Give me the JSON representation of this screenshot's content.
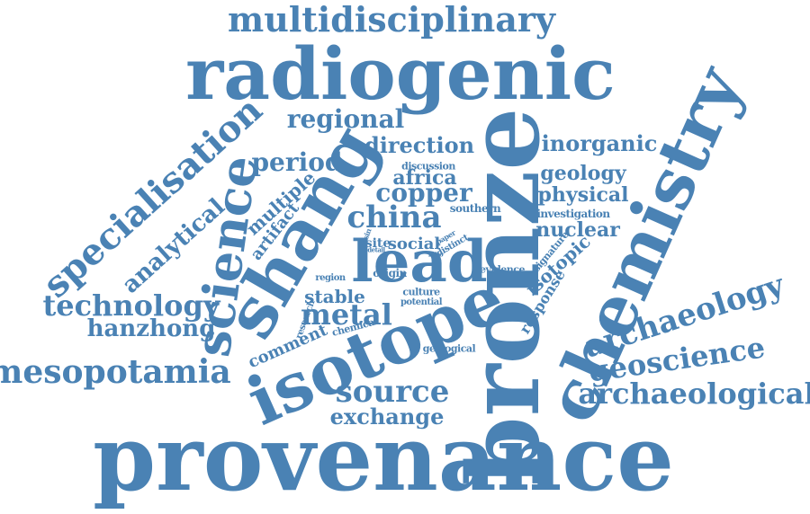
{
  "cloud": {
    "color": "#4a82b4",
    "words": {
      "multidisciplinary": "multidisciplinary",
      "radiogenic": "radiogenic",
      "provenance": "provenance",
      "isotope": "isotope",
      "bronze": "bronze",
      "chemistry": "chemistry",
      "shang": "shang",
      "lead": "lead",
      "science": "science",
      "specialisation": "specialisation",
      "mesopotamia": "mesopotamia",
      "technology": "technology",
      "hanzhong": "hanzhong",
      "analytical": "analytical",
      "multiple": "multiple",
      "artifact": "artifact",
      "regional": "regional",
      "period": "period",
      "direction": "direction",
      "inorganic": "inorganic",
      "geology": "geology",
      "physical": "physical",
      "investigation": "investigation",
      "nuclear": "nuclear",
      "signature": "signature",
      "isotopic": "isotopic",
      "response": "response",
      "archaeology": "archaeology",
      "geoscience": "geoscience",
      "archaeological": "archaeological",
      "source": "source",
      "exchange": "exchange",
      "metal": "metal",
      "stable": "stable",
      "comment": "comment",
      "research": "research",
      "chemical": "chemical",
      "geological": "geological",
      "china": "china",
      "copper": "copper",
      "africa": "africa",
      "discussion": "discussion",
      "southern": "southern",
      "social": "social",
      "site": "site",
      "basin": "basin",
      "detail": "detail",
      "paper": "paper",
      "distinct": "distinct",
      "ratio": "ratio",
      "origin": "origin",
      "region": "region",
      "culture": "culture",
      "potential": "potential",
      "evidence": "evidence"
    }
  }
}
